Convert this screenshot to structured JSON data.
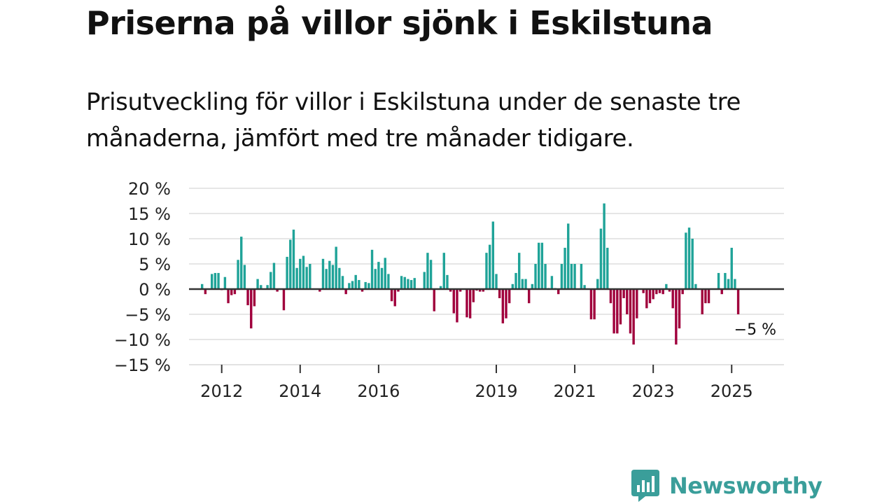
{
  "header": {
    "title": "Priserna på villor sjönk i Eskilstuna",
    "subtitle": "Prisutveckling för villor i Eskilstuna under de senaste tre månaderna, jämfört med tre månader tidigare."
  },
  "brand": {
    "name": "Newsworthy",
    "icon": "newsworthy-logo-icon",
    "color": "#3a9e9a"
  },
  "colors": {
    "positive": "#1fa398",
    "negative": "#a0003c",
    "grid": "#dddddd",
    "zero": "#333333"
  },
  "chart_data": {
    "type": "bar",
    "ylim": [
      -15,
      20
    ],
    "yticks": [
      {
        "v": 20,
        "label": "20 %"
      },
      {
        "v": 15,
        "label": "15 %"
      },
      {
        "v": 10,
        "label": "10 %"
      },
      {
        "v": 5,
        "label": "5 %"
      },
      {
        "v": 0,
        "label": "0 %"
      },
      {
        "v": -5,
        "label": "−5 %"
      },
      {
        "v": -10,
        "label": "−10 %"
      },
      {
        "v": -15,
        "label": "−15 %"
      }
    ],
    "xticks": [
      {
        "i": 6,
        "label": "2012"
      },
      {
        "i": 30,
        "label": "2014"
      },
      {
        "i": 54,
        "label": "2016"
      },
      {
        "i": 90,
        "label": "2019"
      },
      {
        "i": 114,
        "label": "2021"
      },
      {
        "i": 138,
        "label": "2023"
      },
      {
        "i": 162,
        "label": "2025"
      }
    ],
    "annotation": {
      "text": "−5 %",
      "value": -5
    },
    "values": [
      1,
      -1,
      0,
      3,
      3.2,
      3.2,
      -0.2,
      2.4,
      -2.8,
      -1.2,
      -1,
      5.8,
      10.4,
      4.8,
      -3.2,
      -7.8,
      -3.4,
      2,
      0.8,
      0,
      0.8,
      3.4,
      5.2,
      -0.5,
      0,
      -4.2,
      6.4,
      9.8,
      11.8,
      4.2,
      6,
      6.6,
      4.4,
      5,
      0,
      0,
      -0.5,
      6,
      4,
      5.6,
      4.8,
      8.4,
      4.2,
      2.6,
      -1,
      1.2,
      1.6,
      2.8,
      1.8,
      -0.5,
      1.4,
      1.2,
      7.8,
      4,
      5.4,
      4.2,
      6.2,
      3,
      -2.4,
      -3.4,
      -0.5,
      2.6,
      2.4,
      2,
      1.8,
      2.2,
      0,
      0,
      3.4,
      7.2,
      5.8,
      -4.4,
      0,
      0.6,
      7.2,
      2.8,
      -0.5,
      -4.8,
      -6.6,
      -0.5,
      0,
      -5.6,
      -5.8,
      -2.6,
      -0.3,
      -0.5,
      -0.5,
      7.2,
      8.8,
      13.4,
      3,
      -1.8,
      -6.8,
      -5.8,
      -2.8,
      1,
      3.2,
      7.2,
      2,
      2,
      -2.8,
      1,
      5,
      9.2,
      9.2,
      5,
      0.2,
      2.6,
      0.2,
      -1,
      5,
      8.2,
      13,
      5,
      5,
      0,
      5,
      0.8,
      0,
      -6,
      -6,
      2,
      12,
      17,
      8.2,
      -2.8,
      -8.8,
      -8.8,
      -7,
      -1.8,
      -5,
      -8.8,
      -11,
      -5.8,
      0,
      -0.8,
      -3.8,
      -2.8,
      -2,
      -1,
      -0.8,
      -1,
      1,
      -0.5,
      -3.8,
      -11,
      -7.8,
      -1,
      11.2,
      12.2,
      10,
      1,
      0,
      -5,
      -2.8,
      -2.8,
      0,
      0,
      3.2,
      -1,
      3.2,
      2,
      8.2,
      2,
      -5
    ]
  }
}
